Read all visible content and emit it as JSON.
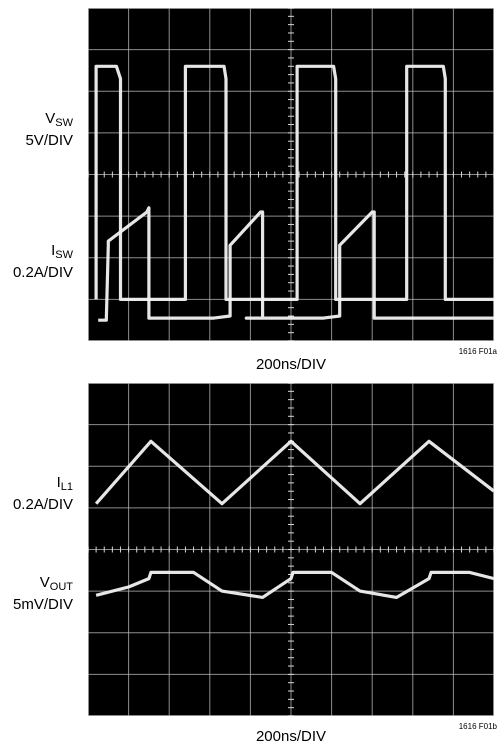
{
  "panel1": {
    "trace1": {
      "symbol": "V",
      "sub": "SW",
      "scale": "5V/DIV"
    },
    "trace2": {
      "symbol": "I",
      "sub": "SW",
      "scale": "0.2A/DIV"
    },
    "timebase": "200ns/DIV",
    "figure_id": "1616 F01a"
  },
  "panel2": {
    "trace1": {
      "symbol": "I",
      "sub": "L1",
      "scale": "0.2A/DIV"
    },
    "trace2": {
      "symbol": "V",
      "sub": "OUT",
      "scale": "5mV/DIV"
    },
    "timebase": "200ns/DIV",
    "figure_id": "1616 F01b"
  },
  "chart_data": [
    {
      "type": "line",
      "title": "",
      "xlabel": "200ns/DIV",
      "x_divisions": 10,
      "y_divisions": 8,
      "series": [
        {
          "name": "V_SW 5V/DIV",
          "x": [
            0.2,
            0.2,
            0.7,
            0.8,
            0.8,
            2.4,
            2.4,
            3.35,
            3.4,
            3.4,
            5.15,
            5.15,
            6.05,
            6.1,
            6.1,
            7.85,
            7.85,
            8.75,
            8.8,
            8.8,
            10.0
          ],
          "y": [
            1.0,
            6.6,
            6.6,
            6.3,
            1.0,
            1.0,
            6.6,
            6.6,
            6.3,
            1.0,
            1.0,
            6.6,
            6.6,
            6.3,
            1.0,
            1.0,
            6.6,
            6.6,
            6.3,
            1.0,
            1.0
          ]
        },
        {
          "name": "I_SW 0.2A/DIV",
          "x": [
            0.25,
            0.45,
            0.5,
            0.5,
            1.45,
            1.5,
            1.5,
            3.1,
            3.5,
            3.5,
            4.25,
            4.3,
            4.3,
            3.9,
            3.9,
            5.8,
            6.2,
            6.2,
            7.0,
            7.05,
            7.05,
            9.15,
            9.15,
            10.0
          ],
          "y": [
            0.5,
            0.5,
            2.3,
            2.4,
            3.1,
            3.2,
            0.55,
            0.55,
            0.6,
            2.3,
            3.1,
            3.1,
            0.55,
            0.55,
            0.55,
            0.55,
            0.6,
            2.3,
            3.1,
            3.1,
            0.55,
            0.55,
            0.55,
            0.55
          ]
        }
      ]
    },
    {
      "type": "line",
      "title": "",
      "xlabel": "200ns/DIV",
      "x_divisions": 10,
      "y_divisions": 8,
      "series": [
        {
          "name": "I_L1 0.2A/DIV",
          "x": [
            0.2,
            1.55,
            3.3,
            5.0,
            6.7,
            8.4,
            10.0
          ],
          "y": [
            5.1,
            6.6,
            5.1,
            6.6,
            5.1,
            6.6,
            5.4
          ]
        },
        {
          "name": "V_OUT 5mV/DIV",
          "x": [
            0.2,
            1.0,
            1.5,
            1.55,
            2.6,
            3.3,
            4.3,
            5.0,
            5.05,
            6.0,
            6.7,
            7.6,
            8.4,
            8.45,
            9.4,
            10.0
          ],
          "y": [
            2.9,
            3.1,
            3.3,
            3.45,
            3.45,
            3.0,
            2.85,
            3.3,
            3.45,
            3.45,
            3.0,
            2.85,
            3.3,
            3.45,
            3.45,
            3.3
          ]
        }
      ]
    }
  ]
}
